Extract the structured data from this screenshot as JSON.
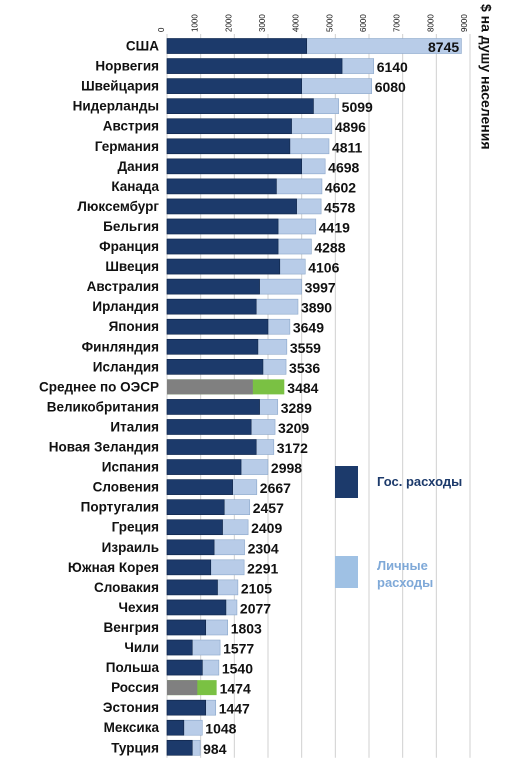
{
  "chart_data": {
    "type": "bar",
    "orientation": "horizontal",
    "stacked": true,
    "axis_title": "$ на душу населения",
    "xlim": [
      0,
      9000
    ],
    "ticks": [
      0,
      1000,
      2000,
      3000,
      4000,
      5000,
      6000,
      7000,
      8000,
      9000
    ],
    "legend_position": "right",
    "series": [
      {
        "name": "Гос. расходы",
        "color": "#1c3a6b"
      },
      {
        "name": "Личные расходы",
        "color": "#b8cce8"
      }
    ],
    "categories": [
      {
        "label": "США",
        "public": 4150,
        "total": 8745
      },
      {
        "label": "Норвегия",
        "public": 5200,
        "total": 6140
      },
      {
        "label": "Швейцария",
        "public": 4000,
        "total": 6080
      },
      {
        "label": "Нидерланды",
        "public": 4350,
        "total": 5099
      },
      {
        "label": "Австрия",
        "public": 3700,
        "total": 4896
      },
      {
        "label": "Германия",
        "public": 3650,
        "total": 4811
      },
      {
        "label": "Дания",
        "public": 4000,
        "total": 4698
      },
      {
        "label": "Канада",
        "public": 3250,
        "total": 4602
      },
      {
        "label": "Люксембург",
        "public": 3850,
        "total": 4578
      },
      {
        "label": "Бельгия",
        "public": 3300,
        "total": 4419
      },
      {
        "label": "Франция",
        "public": 3300,
        "total": 4288
      },
      {
        "label": "Швеция",
        "public": 3350,
        "total": 4106
      },
      {
        "label": "Австралия",
        "public": 2750,
        "total": 3997
      },
      {
        "label": "Ирландия",
        "public": 2650,
        "total": 3890
      },
      {
        "label": "Япония",
        "public": 3000,
        "total": 3649
      },
      {
        "label": "Финляндия",
        "public": 2700,
        "total": 3559
      },
      {
        "label": "Исландия",
        "public": 2850,
        "total": 3536
      },
      {
        "label": "Среднее по ОЭСР",
        "public": 2550,
        "total": 3484,
        "highlight": "oecd"
      },
      {
        "label": "Великобритания",
        "public": 2750,
        "total": 3289
      },
      {
        "label": "Италия",
        "public": 2500,
        "total": 3209
      },
      {
        "label": "Новая Зеландия",
        "public": 2650,
        "total": 3172
      },
      {
        "label": "Испания",
        "public": 2200,
        "total": 2998
      },
      {
        "label": "Словения",
        "public": 1950,
        "total": 2667
      },
      {
        "label": "Португалия",
        "public": 1700,
        "total": 2457
      },
      {
        "label": "Греция",
        "public": 1650,
        "total": 2409
      },
      {
        "label": "Израиль",
        "public": 1400,
        "total": 2304
      },
      {
        "label": "Южная Корея",
        "public": 1300,
        "total": 2291
      },
      {
        "label": "Словакия",
        "public": 1500,
        "total": 2105
      },
      {
        "label": "Чехия",
        "public": 1750,
        "total": 2077
      },
      {
        "label": "Венгрия",
        "public": 1150,
        "total": 1803
      },
      {
        "label": "Чили",
        "public": 750,
        "total": 1577
      },
      {
        "label": "Польша",
        "public": 1050,
        "total": 1540
      },
      {
        "label": "Россия",
        "public": 900,
        "total": 1474,
        "highlight": "russia"
      },
      {
        "label": "Эстония",
        "public": 1150,
        "total": 1447
      },
      {
        "label": "Мексика",
        "public": 500,
        "total": 1048
      },
      {
        "label": "Турция",
        "public": 750,
        "total": 984
      }
    ],
    "highlight_styles": {
      "oecd": {
        "public_color": "#808080",
        "private_color": "#7ac143",
        "label_color": "#2e7d32"
      },
      "russia": {
        "public_color": "#808080",
        "private_color": "#7ac143",
        "label_color": "#d32f2f"
      }
    }
  }
}
